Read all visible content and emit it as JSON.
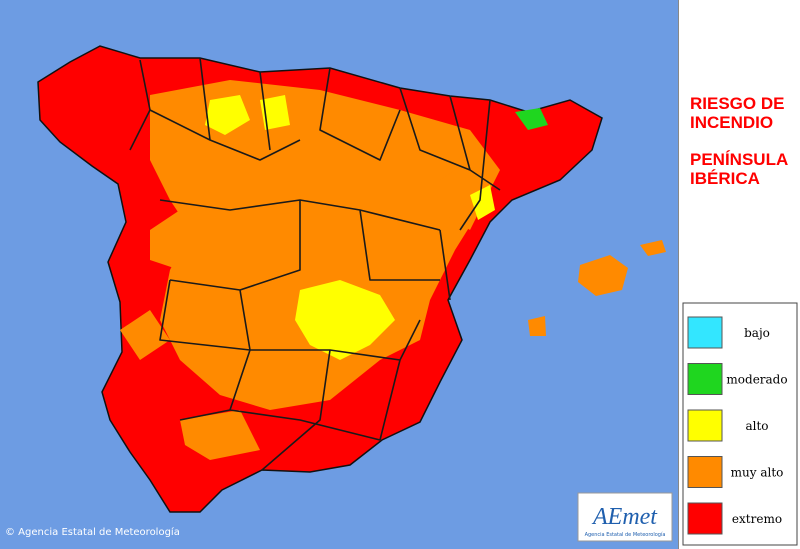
{
  "title": {
    "line1": "RIESGO DE",
    "line2": "INCENDIO",
    "line3": "PENÍNSULA",
    "line4": "IBÉRICA"
  },
  "legend": [
    {
      "label": "bajo",
      "color": "#33e6ff"
    },
    {
      "label": "moderado",
      "color": "#1fd61f"
    },
    {
      "label": "alto",
      "color": "#ffff00"
    },
    {
      "label": "muy alto",
      "color": "#ff8a00"
    },
    {
      "label": "extremo",
      "color": "#ff0000"
    }
  ],
  "footer": {
    "copyright": "© Agencia Estatal de Meteorología"
  },
  "logo": {
    "name": "AEmet",
    "subtitle": "Agencia Estatal de Meteorología"
  }
}
